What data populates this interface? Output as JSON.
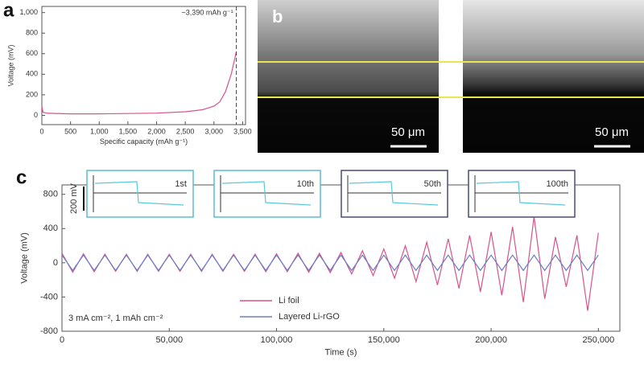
{
  "chart_data": [
    {
      "type": "line",
      "panel": "a",
      "x_label": "Specific capacity (mAh g⁻¹)",
      "y_label": "Voltage (mV)",
      "x": [
        0,
        20,
        100,
        500,
        1000,
        1500,
        2000,
        2500,
        2800,
        3000,
        3100,
        3200,
        3300,
        3350,
        3390
      ],
      "series": [
        {
          "color": "#d9528c",
          "values": [
            90,
            30,
            20,
            15,
            15,
            18,
            22,
            35,
            55,
            90,
            130,
            230,
            400,
            520,
            620
          ]
        }
      ],
      "xlim": [
        0,
        3550
      ],
      "ylim": [
        -90,
        1060
      ],
      "xticks": [
        0,
        500,
        {
          "value": 1000,
          "label": "1,000"
        },
        {
          "value": 1500,
          "label": "1,500"
        },
        {
          "value": 2000,
          "label": "2,000"
        },
        {
          "value": 2500,
          "label": "2,500"
        },
        {
          "value": 3000,
          "label": "3,000"
        },
        {
          "value": 3500,
          "label": "3,500"
        }
      ],
      "yticks": [
        0,
        200,
        400,
        600,
        800,
        {
          "value": 1000,
          "label": "1,000"
        }
      ],
      "annotation": {
        "text": "~3,390 mAh g⁻¹",
        "x": 3390
      }
    },
    {
      "type": "line",
      "panel": "c",
      "x_label": "Time (s)",
      "y_label": "Voltage (mV)",
      "note": "3 mA cm⁻², 1 mAh cm⁻²",
      "insets": [
        "1st",
        "10th",
        "50th",
        "100th"
      ],
      "inset_scale": "200 mV",
      "x": [
        0,
        5000,
        10000,
        15000,
        20000,
        25000,
        30000,
        35000,
        40000,
        45000,
        50000,
        55000,
        60000,
        65000,
        70000,
        75000,
        80000,
        85000,
        90000,
        95000,
        100000,
        105000,
        110000,
        115000,
        120000,
        125000,
        130000,
        135000,
        140000,
        145000,
        150000,
        155000,
        160000,
        165000,
        170000,
        175000,
        180000,
        185000,
        190000,
        195000,
        200000,
        205000,
        210000,
        215000,
        220000,
        225000,
        230000,
        235000,
        240000,
        245000,
        250000
      ],
      "series": [
        {
          "name": "Li foil",
          "color": "#d9528c",
          "values": [
            110,
            -110,
            105,
            -105,
            100,
            -100,
            100,
            -100,
            100,
            -100,
            100,
            -100,
            100,
            -100,
            100,
            -100,
            100,
            -100,
            100,
            -105,
            105,
            -105,
            110,
            -110,
            110,
            -115,
            120,
            -130,
            140,
            -150,
            160,
            -180,
            200,
            -220,
            240,
            -260,
            280,
            -300,
            320,
            -340,
            360,
            -380,
            420,
            -460,
            540,
            -420,
            300,
            -280,
            320,
            -560,
            350
          ]
        },
        {
          "name": "Layered Li-rGO",
          "color": "#6b7fc4",
          "values": [
            90,
            -90,
            90,
            -90,
            90,
            -90,
            90,
            -90,
            90,
            -90,
            90,
            -90,
            90,
            -90,
            90,
            -90,
            90,
            -90,
            90,
            -90,
            90,
            -90,
            90,
            -90,
            90,
            -90,
            90,
            -90,
            90,
            -90,
            90,
            -90,
            90,
            -90,
            90,
            -90,
            90,
            -90,
            90,
            -90,
            90,
            -90,
            90,
            -90,
            90,
            -90,
            90,
            -90,
            90,
            -90,
            90
          ]
        }
      ],
      "xlim": [
        0,
        260000
      ],
      "ylim": [
        -800,
        910
      ],
      "xticks": [
        0,
        {
          "value": 50000,
          "label": "50,000"
        },
        {
          "value": 100000,
          "label": "100,000"
        },
        {
          "value": 150000,
          "label": "150,000"
        },
        {
          "value": 200000,
          "label": "200,000"
        },
        {
          "value": 250000,
          "label": "250,000"
        }
      ],
      "yticks": [
        -800,
        -400,
        0,
        400,
        800
      ]
    }
  ],
  "panel_b": {
    "panel": "b",
    "scale_bars": [
      "50 μm",
      "50 μm"
    ]
  }
}
